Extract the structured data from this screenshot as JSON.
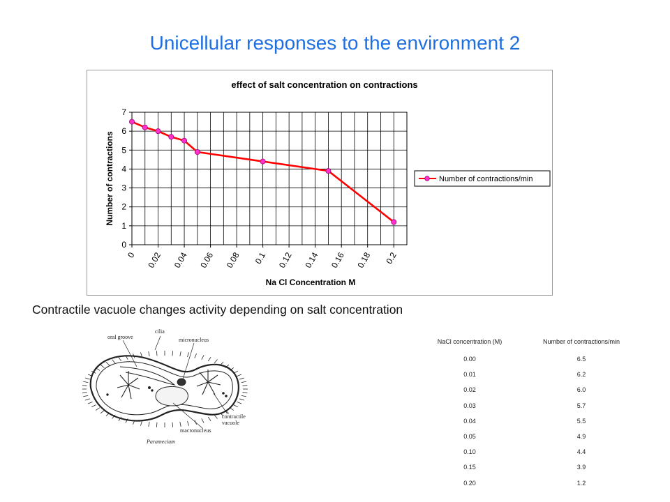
{
  "slide": {
    "title": "Unicellular responses to the environment 2",
    "caption": "Contractile vacuole changes activity depending on salt concentration"
  },
  "chart_data": {
    "type": "line",
    "title": "effect of salt concentration on contractions",
    "xlabel": "Na Cl Concentration M",
    "ylabel": "Number of contractions",
    "x_ticks": [
      "0",
      "0.02",
      "0.04",
      "0.06",
      "0.08",
      "0.1",
      "0.12",
      "0.14",
      "0.16",
      "0.18",
      "0.2"
    ],
    "y_ticks": [
      "0",
      "1",
      "2",
      "3",
      "4",
      "5",
      "6",
      "7"
    ],
    "xlim": [
      0,
      0.21
    ],
    "ylim": [
      0,
      7
    ],
    "grid": true,
    "legend_position": "right",
    "series": [
      {
        "name": "Number of contractions/min",
        "color": "#ff0000",
        "marker_color": "#ff33cc",
        "points": [
          {
            "x": 0.0,
            "y": 6.5
          },
          {
            "x": 0.01,
            "y": 6.2
          },
          {
            "x": 0.02,
            "y": 6.0
          },
          {
            "x": 0.03,
            "y": 5.7
          },
          {
            "x": 0.04,
            "y": 5.5
          },
          {
            "x": 0.05,
            "y": 4.9
          },
          {
            "x": 0.1,
            "y": 4.4
          },
          {
            "x": 0.15,
            "y": 3.9
          },
          {
            "x": 0.2,
            "y": 1.2
          }
        ]
      }
    ]
  },
  "figure": {
    "labels": {
      "oral_groove": "oral groove",
      "cilia": "cilia",
      "micronucleus": "micronucleus",
      "contractile_vacuole_1": "contractile",
      "contractile_vacuole_2": "vacuole",
      "macronucleus": "macronucleus",
      "caption": "Paramecium"
    }
  },
  "table": {
    "headers": [
      "NaCl concentration (M)",
      "Number of contractions/min"
    ],
    "rows": [
      [
        "0.00",
        "6.5"
      ],
      [
        "0.01",
        "6.2"
      ],
      [
        "0.02",
        "6.0"
      ],
      [
        "0.03",
        "5.7"
      ],
      [
        "0.04",
        "5.5"
      ],
      [
        "0.05",
        "4.9"
      ],
      [
        "0.10",
        "4.4"
      ],
      [
        "0.15",
        "3.9"
      ],
      [
        "0.20",
        "1.2"
      ]
    ]
  }
}
